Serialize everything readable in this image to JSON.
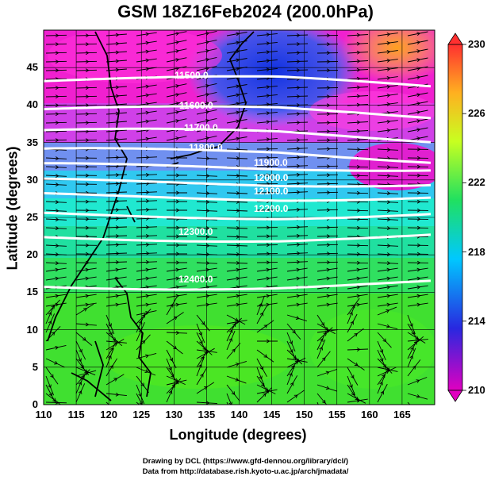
{
  "title": "GSM 18Z16Feb2024 (200.0hPa)",
  "xaxis": {
    "label": "Longitude (degrees)",
    "ticks": [
      "110",
      "115",
      "120",
      "125",
      "130",
      "135",
      "140",
      "145",
      "150",
      "155",
      "160",
      "165"
    ],
    "range": [
      110,
      170
    ]
  },
  "yaxis": {
    "label": "Latitude  (degrees)",
    "ticks": [
      "0",
      "5",
      "10",
      "15",
      "20",
      "25",
      "30",
      "35",
      "40",
      "45"
    ],
    "range": [
      0,
      50
    ]
  },
  "colorbar": {
    "ticks": [
      "210",
      "214",
      "218",
      "222",
      "226",
      "230"
    ],
    "range": [
      210,
      230
    ],
    "colors": [
      "#e000c0",
      "#2828e0",
      "#00c8ff",
      "#20e060",
      "#c8ff20",
      "#ffb020",
      "#ff3030"
    ]
  },
  "contours": [
    {
      "label": "11500.0",
      "lat": 43.2
    },
    {
      "label": "11600.0",
      "lat": 39.2
    },
    {
      "label": "11700.0",
      "lat": 36.2
    },
    {
      "label": "11800.0",
      "lat": 33.6
    },
    {
      "label": "11900.0",
      "lat": 31.6
    },
    {
      "label": "12000.0",
      "lat": 29.6
    },
    {
      "label": "12100.0",
      "lat": 27.8
    },
    {
      "label": "12200.0",
      "lat": 25.4
    },
    {
      "label": "12300.0",
      "lat": 22.4
    },
    {
      "label": "12400.0",
      "lat": 16.0
    }
  ],
  "credits": {
    "line1": "Drawing by DCL (https://www.gfd-dennou.org/library/dcl/)",
    "line2": "Data from http://database.rish.kyoto-u.ac.jp/arch/jmadata/"
  }
}
